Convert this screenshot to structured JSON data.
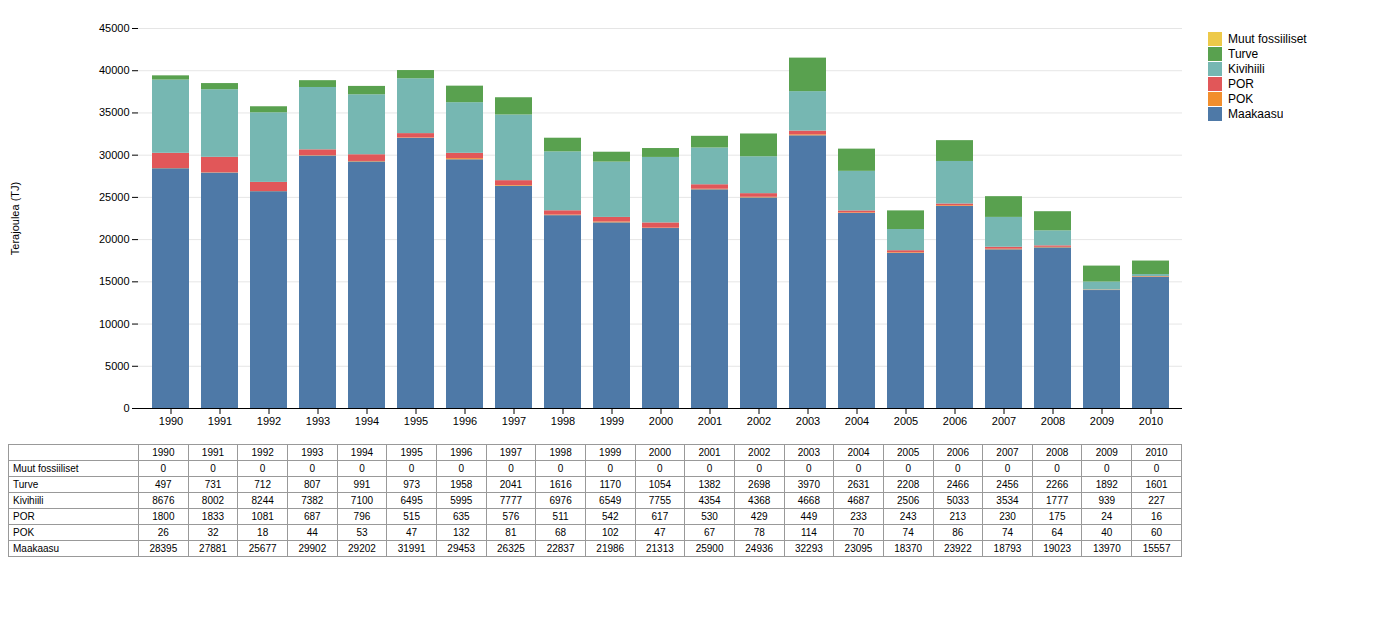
{
  "chart_data": {
    "type": "bar",
    "stacked": true,
    "ylabel": "Terajoulea (TJ)",
    "categories": [
      1990,
      1991,
      1992,
      1993,
      1994,
      1995,
      1996,
      1997,
      1998,
      1999,
      2000,
      2001,
      2002,
      2003,
      2004,
      2005,
      2006,
      2007,
      2008,
      2009,
      2010
    ],
    "series": [
      {
        "name": "Maakaasu",
        "values": [
          28395,
          27881,
          25677,
          29902,
          29202,
          31991,
          29453,
          26325,
          22837,
          21986,
          21313,
          25900,
          24936,
          32293,
          23095,
          18370,
          23922,
          18793,
          19023,
          13970,
          15557
        ]
      },
      {
        "name": "POK",
        "values": [
          26,
          32,
          18,
          44,
          53,
          47,
          132,
          81,
          68,
          102,
          47,
          67,
          78,
          114,
          70,
          74,
          86,
          74,
          64,
          40,
          60
        ]
      },
      {
        "name": "POR",
        "values": [
          1800,
          1833,
          1081,
          687,
          796,
          515,
          635,
          576,
          511,
          542,
          617,
          530,
          429,
          449,
          233,
          243,
          213,
          230,
          175,
          24,
          16
        ]
      },
      {
        "name": "Kivihiili",
        "values": [
          8676,
          8002,
          8244,
          7382,
          7100,
          6495,
          5995,
          7777,
          6976,
          6549,
          7755,
          4354,
          4368,
          4668,
          4687,
          2506,
          5033,
          3534,
          1777,
          939,
          227
        ]
      },
      {
        "name": "Turve",
        "values": [
          497,
          731,
          712,
          807,
          991,
          973,
          1958,
          2041,
          1616,
          1170,
          1054,
          1382,
          2698,
          3970,
          2631,
          2208,
          2466,
          2456,
          2266,
          1892,
          1601
        ]
      },
      {
        "name": "Muut fossiiliset",
        "values": [
          0,
          0,
          0,
          0,
          0,
          0,
          0,
          0,
          0,
          0,
          0,
          0,
          0,
          0,
          0,
          0,
          0,
          0,
          0,
          0,
          0
        ]
      }
    ],
    "ylim": [
      0,
      45000
    ],
    "yticks": [
      0,
      5000,
      10000,
      15000,
      20000,
      25000,
      30000,
      35000,
      40000,
      45000
    ],
    "grid": true,
    "legend": "right"
  }
}
